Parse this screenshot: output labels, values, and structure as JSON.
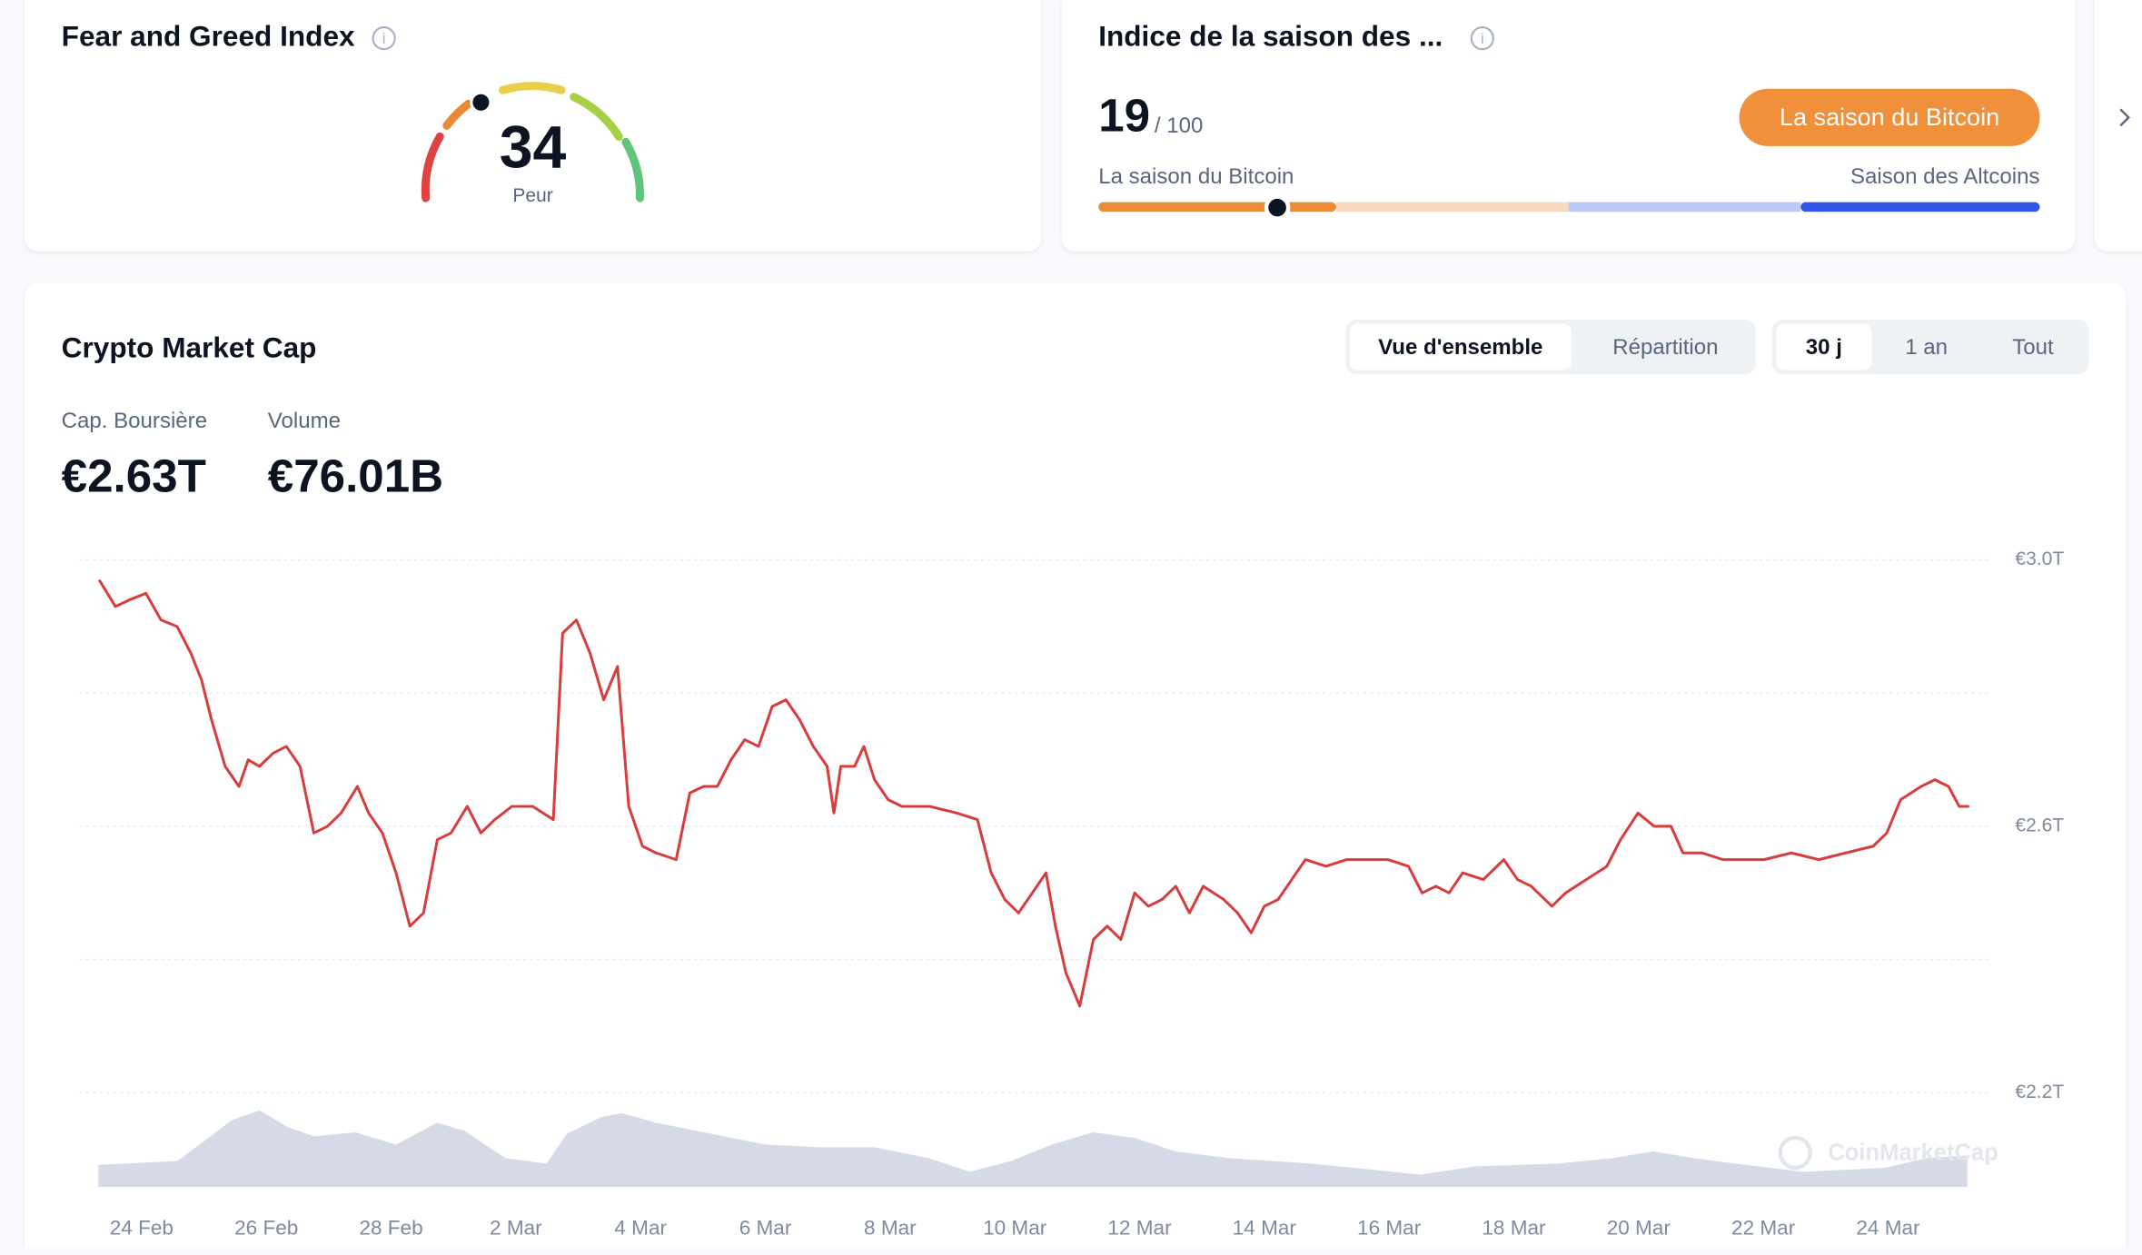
{
  "fear_greed": {
    "title": "Fear and Greed Index",
    "value": 34,
    "label": "Peur"
  },
  "altcoin_index": {
    "title": "Indice de la saison des ...",
    "value": 19,
    "max": 100,
    "max_label": "/ 100",
    "button": "La saison du Bitcoin",
    "left_label": "La saison du Bitcoin",
    "right_label": "Saison des Altcoins"
  },
  "market": {
    "title": "Crypto Market Cap",
    "tabs": [
      "Vue d'ensemble",
      "Répartition"
    ],
    "ranges": [
      "30 j",
      "1 an",
      "Tout"
    ],
    "stats": [
      {
        "label": "Cap. Boursière",
        "value": "€2.63T"
      },
      {
        "label": "Volume",
        "value": "€76.01B"
      }
    ]
  },
  "chart_data": {
    "type": "line",
    "color": "#d83d3d",
    "watermark": "CoinMarketCap",
    "x": [
      -0.68,
      -0.42,
      -0.2,
      0.07,
      0.31,
      0.57,
      0.79,
      0.96,
      1.12,
      1.34,
      1.56,
      1.71,
      1.89,
      2.11,
      2.32,
      2.54,
      2.76,
      2.98,
      3.2,
      3.46,
      3.64,
      3.86,
      4.08,
      4.3,
      4.52,
      4.74,
      4.96,
      5.22,
      5.44,
      5.66,
      5.94,
      6.27,
      6.6,
      6.75,
      6.97,
      7.19,
      7.41,
      7.63,
      7.81,
      8.03,
      8.25,
      8.57,
      8.79,
      9.01,
      9.23,
      9.45,
      9.67,
      9.89,
      10.11,
      10.33,
      10.55,
      10.77,
      10.99,
      11.1,
      11.21,
      11.43,
      11.58,
      11.75,
      11.97,
      12.19,
      12.63,
      13.07,
      13.4,
      13.62,
      13.84,
      14.06,
      14.28,
      14.5,
      14.65,
      14.82,
      15.04,
      15.26,
      15.48,
      15.7,
      15.92,
      16.14,
      16.36,
      16.58,
      16.8,
      17.02,
      17.35,
      17.57,
      17.79,
      18.0,
      18.22,
      18.44,
      18.66,
      18.99,
      19.32,
      19.65,
      19.98,
      20.31,
      20.53,
      20.75,
      20.96,
      21.18,
      21.51,
      21.84,
      22.06,
      22.28,
      22.61,
      22.83,
      23.16,
      23.49,
      23.71,
      23.99,
      24.25,
      24.52,
      24.71,
      25.02,
      25.35,
      25.68,
      26.01,
      26.45,
      26.89,
      27.32,
      27.76,
      27.98,
      28.2,
      28.53,
      28.75,
      28.97,
      29.14,
      29.3
    ],
    "values": [
      2.97,
      2.93,
      2.94,
      2.95,
      2.91,
      2.9,
      2.86,
      2.82,
      2.76,
      2.69,
      2.66,
      2.7,
      2.69,
      2.71,
      2.72,
      2.69,
      2.59,
      2.6,
      2.62,
      2.66,
      2.62,
      2.59,
      2.53,
      2.45,
      2.47,
      2.58,
      2.59,
      2.63,
      2.59,
      2.61,
      2.63,
      2.63,
      2.61,
      2.89,
      2.91,
      2.86,
      2.79,
      2.84,
      2.63,
      2.57,
      2.56,
      2.55,
      2.65,
      2.66,
      2.66,
      2.7,
      2.73,
      2.72,
      2.78,
      2.79,
      2.76,
      2.72,
      2.69,
      2.62,
      2.69,
      2.69,
      2.72,
      2.67,
      2.64,
      2.63,
      2.63,
      2.62,
      2.61,
      2.53,
      2.49,
      2.47,
      2.5,
      2.53,
      2.45,
      2.38,
      2.33,
      2.43,
      2.45,
      2.43,
      2.5,
      2.48,
      2.49,
      2.51,
      2.47,
      2.51,
      2.49,
      2.47,
      2.44,
      2.48,
      2.49,
      2.52,
      2.55,
      2.54,
      2.55,
      2.55,
      2.55,
      2.54,
      2.5,
      2.51,
      2.5,
      2.53,
      2.52,
      2.55,
      2.52,
      2.51,
      2.48,
      2.5,
      2.52,
      2.54,
      2.58,
      2.62,
      2.6,
      2.6,
      2.56,
      2.56,
      2.55,
      2.55,
      2.55,
      2.56,
      2.55,
      2.56,
      2.57,
      2.59,
      2.64,
      2.66,
      2.67,
      2.66,
      2.63,
      2.63
    ],
    "xlim": [
      -1,
      29.6
    ],
    "ylim": [
      2.2,
      3.0
    ],
    "xticks": [
      {
        "value": 0,
        "label": "24 Feb"
      },
      {
        "value": 2,
        "label": "26 Feb"
      },
      {
        "value": 4,
        "label": "28 Feb"
      },
      {
        "value": 6,
        "label": "2 Mar"
      },
      {
        "value": 8,
        "label": "4 Mar"
      },
      {
        "value": 10,
        "label": "6 Mar"
      },
      {
        "value": 12,
        "label": "8 Mar"
      },
      {
        "value": 14,
        "label": "10 Mar"
      },
      {
        "value": 16,
        "label": "12 Mar"
      },
      {
        "value": 18,
        "label": "14 Mar"
      },
      {
        "value": 20,
        "label": "16 Mar"
      },
      {
        "value": 22,
        "label": "18 Mar"
      },
      {
        "value": 24,
        "label": "20 Mar"
      },
      {
        "value": 26,
        "label": "22 Mar"
      },
      {
        "value": 28,
        "label": "24 Mar"
      }
    ],
    "yticks": [
      {
        "value": 3.0,
        "label": "€3.0T"
      },
      {
        "value": 2.6,
        "label": "€2.6T"
      },
      {
        "value": 2.2,
        "label": "€2.2T"
      }
    ],
    "ygrid": [
      3.0,
      2.8,
      2.6,
      2.4,
      2.2
    ]
  }
}
